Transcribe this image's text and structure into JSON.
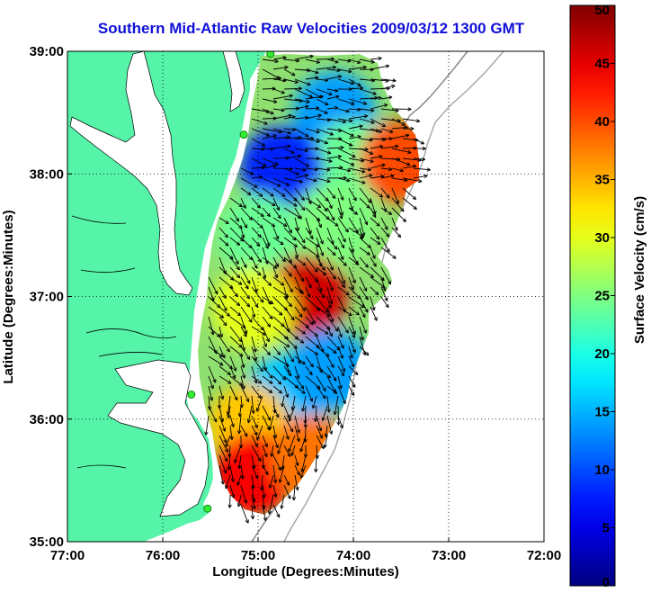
{
  "chart_data": {
    "type": "heatmap",
    "title": "Southern Mid-Atlantic Raw Velocities 2009/03/12 1300 GMT",
    "xlabel": "Longitude (Degrees:Minutes)",
    "ylabel": "Latitude (Degrees:Minutes)",
    "colorbar_label": "Surface Velocity (cm/s)",
    "x_ticks": [
      {
        "value": -77,
        "label": "77:00"
      },
      {
        "value": -76,
        "label": "76:00"
      },
      {
        "value": -75,
        "label": "75:00"
      },
      {
        "value": -74,
        "label": "74:00"
      },
      {
        "value": -73,
        "label": "73:00"
      },
      {
        "value": -72,
        "label": "72:00"
      }
    ],
    "y_ticks": [
      {
        "value": 35,
        "label": "35:00"
      },
      {
        "value": 36,
        "label": "36:00"
      },
      {
        "value": 37,
        "label": "37:00"
      },
      {
        "value": 38,
        "label": "38:00"
      },
      {
        "value": 39,
        "label": "39:00"
      }
    ],
    "xlim": [
      -77,
      -72
    ],
    "ylim": [
      35,
      39
    ],
    "colorbar_ticks": [
      0,
      5,
      10,
      15,
      20,
      25,
      30,
      35,
      40,
      45,
      50
    ],
    "colorbar_range": [
      0,
      50
    ],
    "colormap": "jet",
    "grid": true,
    "land_color": "#55f4a8",
    "arrow_color": "#000000",
    "hfr_sites": [
      {
        "lon": -74.87,
        "lat": 38.98
      },
      {
        "lon": -75.15,
        "lat": 38.32
      },
      {
        "lon": -75.7,
        "lat": 36.2
      },
      {
        "lon": -75.53,
        "lat": 35.27
      }
    ],
    "velocity_regions": [
      {
        "lon": -74.2,
        "lat": 38.5,
        "speed": 14
      },
      {
        "lon": -74.0,
        "lat": 38.1,
        "speed": 24
      },
      {
        "lon": -73.5,
        "lat": 38.1,
        "speed": 40
      },
      {
        "lon": -74.75,
        "lat": 38.05,
        "speed": 8
      },
      {
        "lon": -75.0,
        "lat": 37.5,
        "speed": 24
      },
      {
        "lon": -74.2,
        "lat": 37.6,
        "speed": 25
      },
      {
        "lon": -74.5,
        "lat": 37.0,
        "speed": 46
      },
      {
        "lon": -75.05,
        "lat": 36.9,
        "speed": 30
      },
      {
        "lon": -74.7,
        "lat": 36.2,
        "speed": 16
      },
      {
        "lon": -74.25,
        "lat": 36.4,
        "speed": 14
      },
      {
        "lon": -75.1,
        "lat": 35.95,
        "speed": 34
      },
      {
        "lon": -75.05,
        "lat": 35.55,
        "speed": 44
      },
      {
        "lon": -74.45,
        "lat": 35.7,
        "speed": 38
      }
    ]
  }
}
